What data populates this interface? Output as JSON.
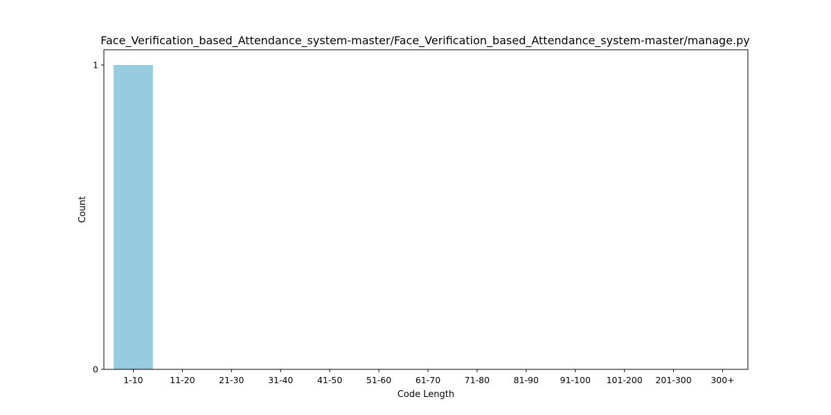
{
  "chart_data": {
    "type": "bar",
    "title": "Face_Verification_based_Attendance_system-master/Face_Verification_based_Attendance_system-master/manage.py",
    "xlabel": "Code Length",
    "ylabel": "Count",
    "categories": [
      "1-10",
      "11-20",
      "21-30",
      "31-40",
      "41-50",
      "51-60",
      "61-70",
      "71-80",
      "81-90",
      "91-100",
      "101-200",
      "201-300",
      "300+"
    ],
    "values": [
      1,
      0,
      0,
      0,
      0,
      0,
      0,
      0,
      0,
      0,
      0,
      0,
      0
    ],
    "ylim": [
      0,
      1
    ],
    "yticks": [
      "0",
      "1"
    ],
    "grid": false,
    "bar_color": "#96cbe0"
  }
}
